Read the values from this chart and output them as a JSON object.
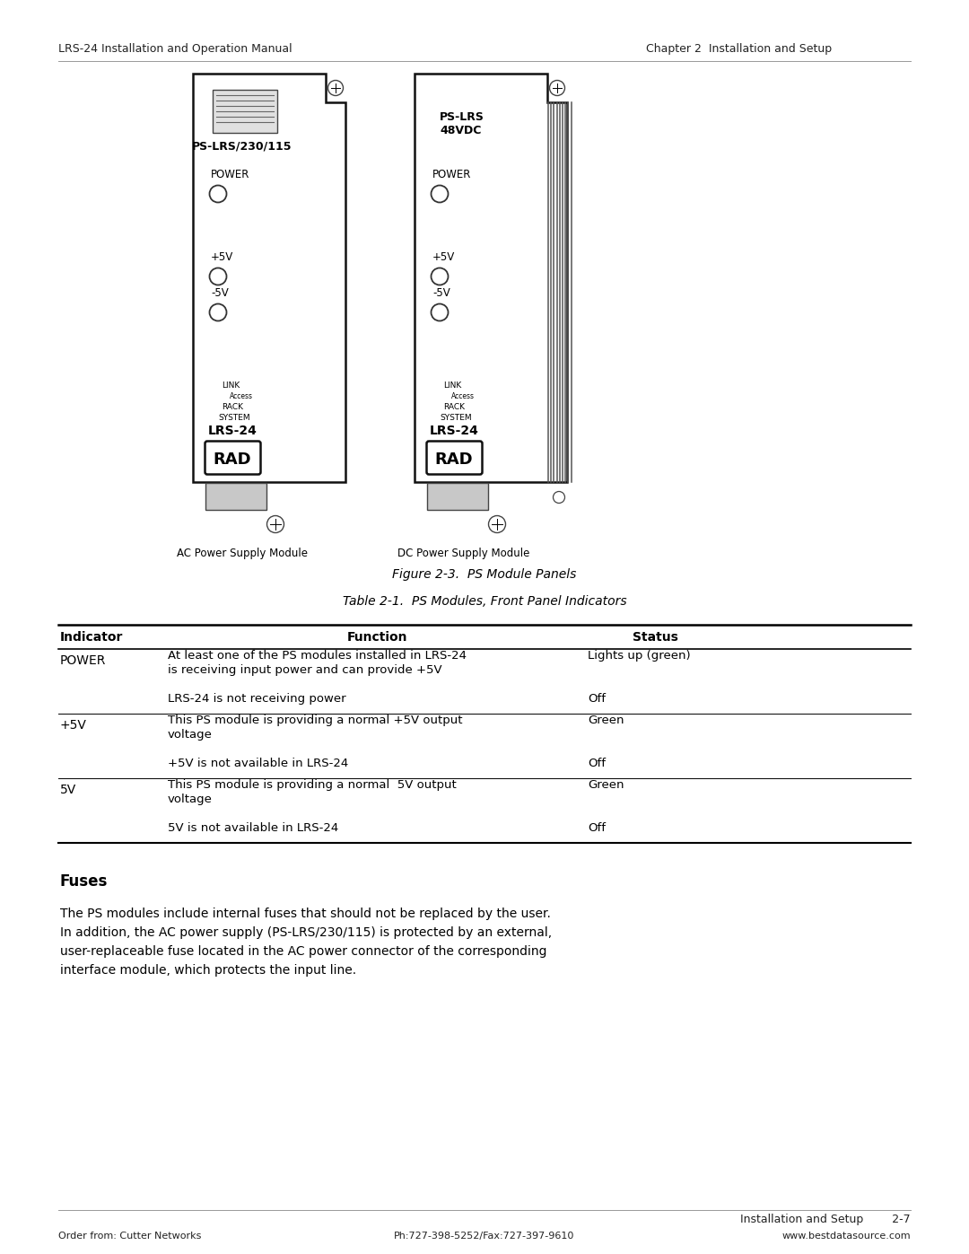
{
  "header_left": "LRS-24 Installation and Operation Manual",
  "header_right": "Chapter 2  Installation and Setup",
  "footer_left": "Order from: Cutter Networks",
  "footer_center": "Ph:727-398-5252/Fax:727-397-9610",
  "footer_right": "www.bestdatasource.com",
  "footer_page": "Installation and Setup",
  "footer_page_num": "2-7",
  "figure_caption": "Figure 2-3.  PS Module Panels",
  "table_title": "Table 2-1.  PS Modules, Front Panel Indicators",
  "ac_label": "AC Power Supply Module",
  "dc_label": "DC Power Supply Module",
  "ac_module_name": "PS-LRS/230/115",
  "table_headers": [
    "Indicator",
    "Function",
    "Status"
  ],
  "fuses_title": "Fuses",
  "fuses_text": "The PS modules include internal fuses that should not be replaced by the user.\nIn addition, the AC power supply (PS-LRS/230/115) is protected by an external,\nuser-replaceable fuse located in the AC power connector of the corresponding\ninterface module, which protects the input line.",
  "bg_color": "#ffffff",
  "text_color": "#000000"
}
